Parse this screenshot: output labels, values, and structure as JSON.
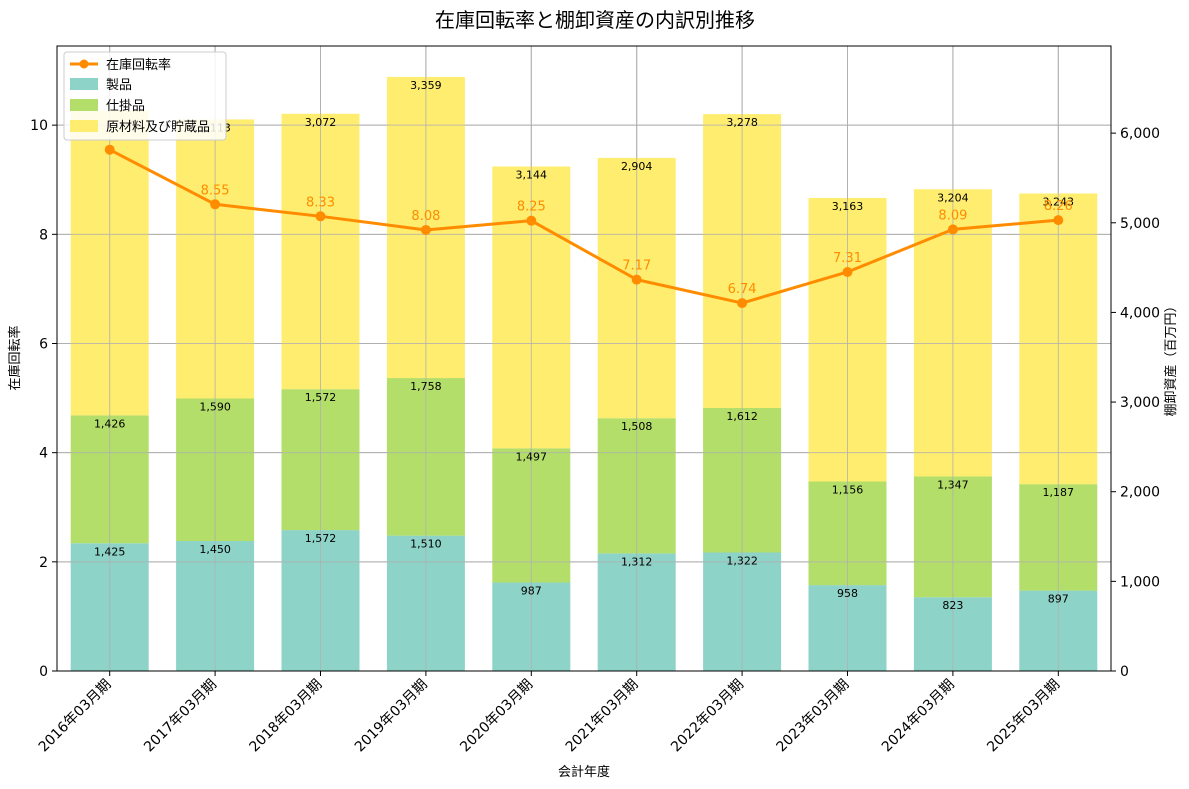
{
  "chart_data": {
    "type": "bar",
    "title": "在庫回転率と棚卸資産の内訳別推移",
    "xlabel": "会計年度",
    "ylabel_left": "在庫回転率",
    "ylabel_right": "棚卸資産（百万円）",
    "categories": [
      "2016年03月期",
      "2017年03月期",
      "2018年03月期",
      "2019年03月期",
      "2020年03月期",
      "2021年03月期",
      "2022年03月期",
      "2023年03月期",
      "2024年03月期",
      "2025年03月期"
    ],
    "bar_series": [
      {
        "name": "製品",
        "color": "#8dd3c7",
        "values": [
          1425,
          1450,
          1572,
          1510,
          987,
          1312,
          1322,
          958,
          823,
          897
        ]
      },
      {
        "name": "仕掛品",
        "color": "#b3de69",
        "values": [
          1426,
          1590,
          1572,
          1758,
          1497,
          1508,
          1612,
          1156,
          1347,
          1187
        ]
      },
      {
        "name": "原材料及び貯蔵品",
        "color": "#ffed6f",
        "values": [
          3400,
          3113,
          3072,
          3359,
          3144,
          2904,
          3278,
          3163,
          3204,
          3243
        ]
      }
    ],
    "bar_labels": [
      [
        "1,425",
        "1,450",
        "1,572",
        "1,510",
        "987",
        "1,312",
        "1,322",
        "958",
        "823",
        "897"
      ],
      [
        "1,426",
        "1,590",
        "1,572",
        "1,758",
        "1,497",
        "1,508",
        "1,612",
        "1,156",
        "1,347",
        "1,187"
      ],
      [
        "",
        "3,113",
        "3,072",
        "3,359",
        "3,144",
        "2,904",
        "3,278",
        "3,163",
        "3,204",
        "3,243"
      ]
    ],
    "line_series": {
      "name": "在庫回転率",
      "color": "#ff8c00",
      "values": [
        9.55,
        8.55,
        8.33,
        8.08,
        8.25,
        7.17,
        6.74,
        7.31,
        8.09,
        8.26
      ],
      "labels": [
        "",
        "8.55",
        "8.33",
        "8.08",
        "8.25",
        "7.17",
        "6.74",
        "7.31",
        "8.09",
        "8.26"
      ]
    },
    "ylim_left": [
      0,
      11.45
    ],
    "ylim_right": [
      0,
      6972
    ],
    "yticks_left": [
      0,
      2,
      4,
      6,
      8,
      10
    ],
    "yticks_left_labels": [
      "0",
      "2",
      "4",
      "6",
      "8",
      "10"
    ],
    "yticks_right": [
      0,
      1000,
      2000,
      3000,
      4000,
      5000,
      6000
    ],
    "yticks_right_labels": [
      "0",
      "1,000",
      "2,000",
      "3,000",
      "4,000",
      "5,000",
      "6,000"
    ],
    "grid": true,
    "legend_position": "top-left"
  }
}
